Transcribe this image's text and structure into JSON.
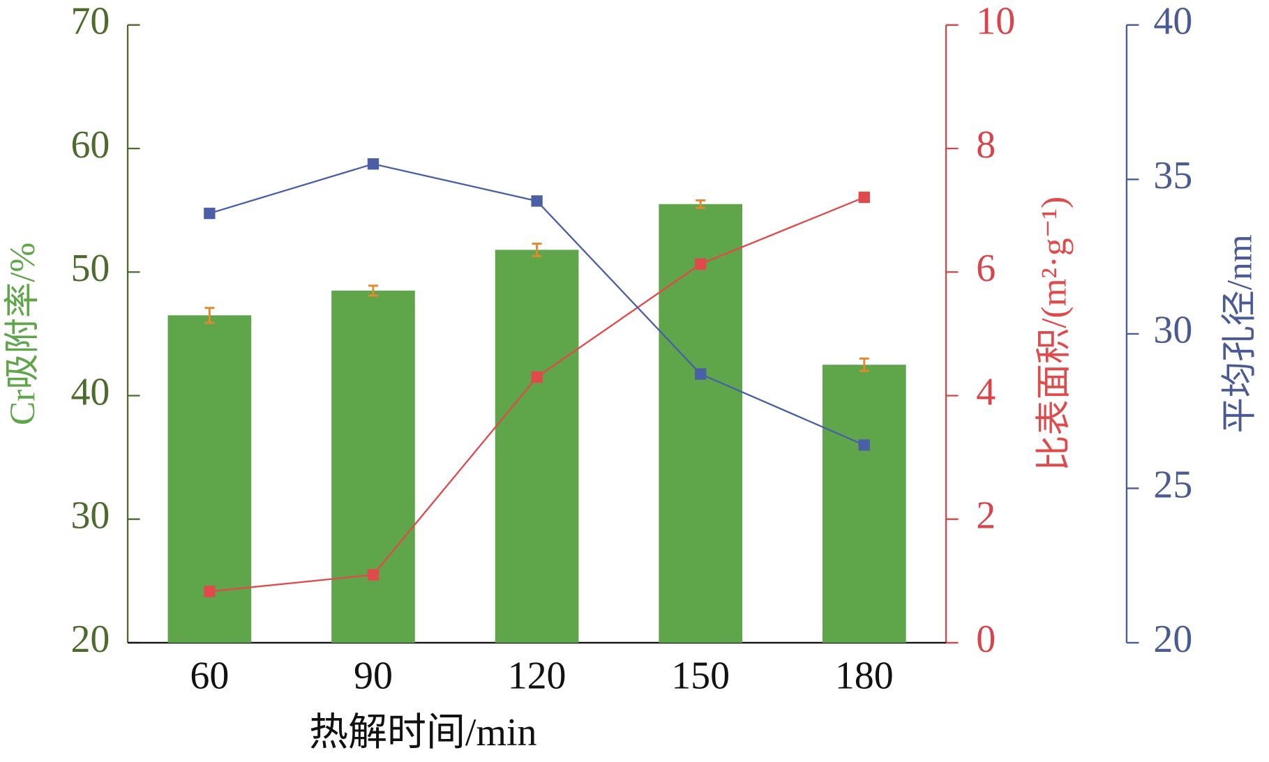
{
  "chart_data": {
    "type": "bar",
    "categories": [
      "60",
      "90",
      "120",
      "150",
      "180"
    ],
    "x_label": "热解时间/min",
    "y_label": "Cr吸附率/%",
    "y2_label": "比表面积/(m²·g⁻¹)",
    "y3_label": "平均孔径/nm",
    "ylim": [
      20,
      70
    ],
    "yticks": [
      20,
      30,
      40,
      50,
      60,
      70
    ],
    "y2lim": [
      0,
      10
    ],
    "y2ticks": [
      0,
      2,
      4,
      6,
      8,
      10
    ],
    "y3lim": [
      20,
      40
    ],
    "y3ticks": [
      20,
      25,
      30,
      35,
      40
    ],
    "series": [
      {
        "name": "Cr吸附率",
        "type": "bar",
        "color": "#5fa64b",
        "error_color": "#e8882e",
        "axis": "y",
        "values": [
          46.5,
          48.5,
          51.8,
          55.5,
          42.5
        ],
        "errors": [
          0.6,
          0.4,
          0.5,
          0.3,
          0.5
        ]
      },
      {
        "name": "比表面积",
        "type": "line",
        "color": "#e04a4a",
        "axis": "y2",
        "values": [
          0.83,
          1.1,
          4.3,
          6.13,
          7.21
        ]
      },
      {
        "name": "平均孔径",
        "type": "line",
        "color": "#4a5fa6",
        "axis": "y3",
        "values": [
          33.9,
          35.5,
          34.3,
          28.7,
          26.4
        ]
      }
    ]
  }
}
